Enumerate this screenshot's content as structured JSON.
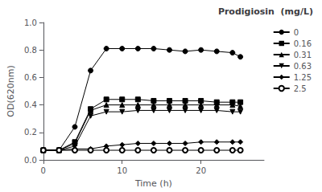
{
  "chart_data": {
    "type": "line",
    "title": "Prodigiosin  (mg/L)",
    "xlabel": "Time (h)",
    "ylabel": "OD(620nm)",
    "xlim": [
      0,
      28
    ],
    "ylim": [
      0.0,
      1.0
    ],
    "xticks": [
      0,
      10,
      20
    ],
    "yticks": [
      {
        "value": 0.0,
        "label": "0.0"
      },
      0.2,
      0.4,
      0.6,
      0.8,
      {
        "value": 1.0,
        "label": "1.0"
      }
    ],
    "grid": false,
    "legend": "upper right",
    "x": [
      0,
      2,
      4,
      6,
      8,
      10,
      12,
      14,
      16,
      18,
      20,
      22,
      24,
      25
    ],
    "series": [
      {
        "name": "0",
        "marker": "circle",
        "color": "#000000",
        "values": [
          0.07,
          0.07,
          0.24,
          0.65,
          0.81,
          0.81,
          0.81,
          0.81,
          0.8,
          0.79,
          0.8,
          0.79,
          0.78,
          0.75
        ]
      },
      {
        "name": "0.16",
        "marker": "square",
        "color": "#000000",
        "values": [
          0.07,
          0.07,
          0.13,
          0.37,
          0.44,
          0.44,
          0.44,
          0.43,
          0.43,
          0.43,
          0.43,
          0.42,
          0.42,
          0.42
        ]
      },
      {
        "name": "0.31",
        "marker": "triangle_up",
        "color": "#000000",
        "values": [
          0.07,
          0.07,
          0.12,
          0.36,
          0.4,
          0.4,
          0.4,
          0.4,
          0.4,
          0.4,
          0.4,
          0.4,
          0.4,
          0.39
        ]
      },
      {
        "name": "0.63",
        "marker": "triangle_down",
        "color": "#000000",
        "values": [
          0.07,
          0.07,
          0.1,
          0.32,
          0.35,
          0.35,
          0.36,
          0.36,
          0.36,
          0.36,
          0.36,
          0.36,
          0.35,
          0.35
        ]
      },
      {
        "name": "1.25",
        "marker": "diamond",
        "color": "#000000",
        "values": [
          0.07,
          0.07,
          0.08,
          0.08,
          0.1,
          0.11,
          0.12,
          0.12,
          0.12,
          0.12,
          0.13,
          0.13,
          0.13,
          0.13
        ]
      },
      {
        "name": "2.5",
        "marker": "open_circle",
        "color": "#000000",
        "values": [
          0.07,
          0.07,
          0.07,
          0.07,
          0.07,
          0.07,
          0.07,
          0.07,
          0.07,
          0.07,
          0.07,
          0.07,
          0.07,
          0.07
        ]
      }
    ]
  }
}
